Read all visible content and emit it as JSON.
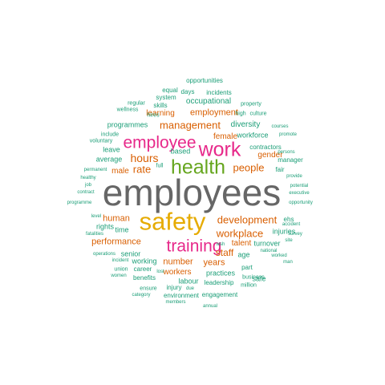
{
  "colors": {
    "grey": "#666666",
    "yellow": "#e6ab02",
    "pink": "#e7298a",
    "green": "#66a61e",
    "orange": "#d95f02",
    "teal": "#1b9e77"
  },
  "words": [
    {
      "text": "employees",
      "c": "grey"
    },
    {
      "text": "safety",
      "c": "yellow"
    },
    {
      "text": "health",
      "c": "green"
    },
    {
      "text": "work",
      "c": "pink"
    },
    {
      "text": "employee",
      "c": "pink"
    },
    {
      "text": "training",
      "c": "pink"
    },
    {
      "text": "management",
      "c": "orange"
    },
    {
      "text": "hours",
      "c": "orange"
    },
    {
      "text": "development",
      "c": "orange"
    },
    {
      "text": "workplace",
      "c": "orange"
    },
    {
      "text": "people",
      "c": "orange"
    },
    {
      "text": "rate",
      "c": "orange"
    },
    {
      "text": "human",
      "c": "orange"
    },
    {
      "text": "performance",
      "c": "orange"
    },
    {
      "text": "number",
      "c": "orange"
    },
    {
      "text": "staff",
      "c": "orange"
    },
    {
      "text": "years",
      "c": "orange"
    },
    {
      "text": "employment",
      "c": "orange"
    },
    {
      "text": "female",
      "c": "orange"
    },
    {
      "text": "gender",
      "c": "orange"
    },
    {
      "text": "male",
      "c": "orange"
    },
    {
      "text": "learning",
      "c": "orange"
    },
    {
      "text": "talent",
      "c": "orange"
    },
    {
      "text": "workers",
      "c": "orange"
    },
    {
      "text": "occupational",
      "c": "teal"
    },
    {
      "text": "diversity",
      "c": "teal"
    },
    {
      "text": "programmes",
      "c": "teal"
    },
    {
      "text": "workforce",
      "c": "teal"
    },
    {
      "text": "average",
      "c": "teal"
    },
    {
      "text": "leave",
      "c": "teal"
    },
    {
      "text": "based",
      "c": "teal"
    },
    {
      "text": "contractors",
      "c": "teal"
    },
    {
      "text": "fair",
      "c": "teal"
    },
    {
      "text": "manager",
      "c": "teal"
    },
    {
      "text": "rights",
      "c": "teal"
    },
    {
      "text": "time",
      "c": "teal"
    },
    {
      "text": "senior",
      "c": "teal"
    },
    {
      "text": "working",
      "c": "teal"
    },
    {
      "text": "age",
      "c": "teal"
    },
    {
      "text": "injuries",
      "c": "teal"
    },
    {
      "text": "safe",
      "c": "teal"
    },
    {
      "text": "labour",
      "c": "teal"
    },
    {
      "text": "practices",
      "c": "teal"
    },
    {
      "text": "leadership",
      "c": "teal"
    },
    {
      "text": "career",
      "c": "teal"
    },
    {
      "text": "benefits",
      "c": "teal"
    },
    {
      "text": "injury",
      "c": "teal"
    },
    {
      "text": "environment",
      "c": "teal"
    },
    {
      "text": "engagement",
      "c": "teal"
    },
    {
      "text": "opportunities",
      "c": "teal"
    },
    {
      "text": "equal",
      "c": "teal"
    },
    {
      "text": "days",
      "c": "teal"
    },
    {
      "text": "incidents",
      "c": "teal"
    },
    {
      "text": "system",
      "c": "teal"
    },
    {
      "text": "skills",
      "c": "teal"
    },
    {
      "text": "hires",
      "c": "teal"
    },
    {
      "text": "property",
      "c": "teal"
    },
    {
      "text": "high",
      "c": "teal"
    },
    {
      "text": "culture",
      "c": "teal"
    },
    {
      "text": "regular",
      "c": "teal"
    },
    {
      "text": "wellness",
      "c": "teal"
    },
    {
      "text": "include",
      "c": "teal"
    },
    {
      "text": "voluntary",
      "c": "teal"
    },
    {
      "text": "full",
      "c": "teal"
    },
    {
      "text": "courses",
      "c": "teal"
    },
    {
      "text": "promote",
      "c": "teal"
    },
    {
      "text": "persons",
      "c": "teal"
    },
    {
      "text": "permanent",
      "c": "teal"
    },
    {
      "text": "healthy",
      "c": "teal"
    },
    {
      "text": "job",
      "c": "teal"
    },
    {
      "text": "contract",
      "c": "teal"
    },
    {
      "text": "programme",
      "c": "teal"
    },
    {
      "text": "provide",
      "c": "teal"
    },
    {
      "text": "potential",
      "c": "teal"
    },
    {
      "text": "executive",
      "c": "teal"
    },
    {
      "text": "opportunity",
      "c": "teal"
    },
    {
      "text": "level",
      "c": "teal"
    },
    {
      "text": "fatalities",
      "c": "teal"
    },
    {
      "text": "ehs",
      "c": "teal"
    },
    {
      "text": "accident",
      "c": "teal"
    },
    {
      "text": "survey",
      "c": "teal"
    },
    {
      "text": "turnover",
      "c": "teal"
    },
    {
      "text": "site",
      "c": "teal"
    },
    {
      "text": "national",
      "c": "teal"
    },
    {
      "text": "worked",
      "c": "teal"
    },
    {
      "text": "wsh",
      "c": "teal"
    },
    {
      "text": "operations",
      "c": "teal"
    },
    {
      "text": "incident",
      "c": "teal"
    },
    {
      "text": "part",
      "c": "teal"
    },
    {
      "text": "man",
      "c": "teal"
    },
    {
      "text": "union",
      "c": "teal"
    },
    {
      "text": "lost",
      "c": "teal"
    },
    {
      "text": "women",
      "c": "teal"
    },
    {
      "text": "business",
      "c": "teal"
    },
    {
      "text": "million",
      "c": "teal"
    },
    {
      "text": "ensure",
      "c": "teal"
    },
    {
      "text": "due",
      "c": "teal"
    },
    {
      "text": "category",
      "c": "teal"
    },
    {
      "text": "members",
      "c": "teal"
    },
    {
      "text": "annual",
      "c": "teal"
    }
  ]
}
